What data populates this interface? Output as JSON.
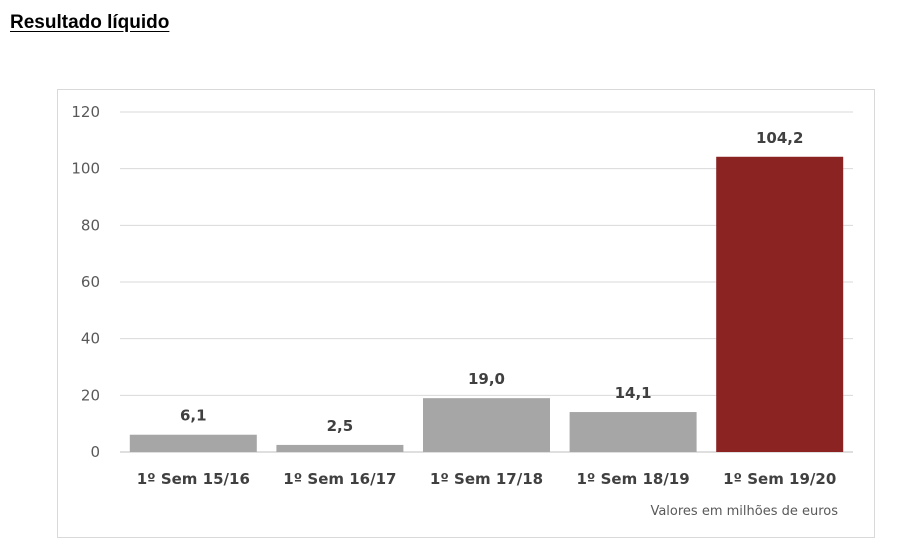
{
  "heading": "Resultado líquido",
  "chart_data": {
    "type": "bar",
    "categories": [
      "1º Sem 15/16",
      "1º Sem 16/17",
      "1º Sem 17/18",
      "1º Sem 18/19",
      "1º Sem 19/20"
    ],
    "values": [
      6.1,
      2.5,
      19.0,
      14.1,
      104.2
    ],
    "data_labels": [
      "6,1",
      "2,5",
      "19,0",
      "14,1",
      "104,2"
    ],
    "bar_colors": [
      "#a6a6a6",
      "#a6a6a6",
      "#a6a6a6",
      "#a6a6a6",
      "#8b2323"
    ],
    "ylim": [
      0,
      120
    ],
    "yticks": [
      0,
      20,
      40,
      60,
      80,
      100,
      120
    ],
    "grid": true,
    "units_note": "Valores em milhões de euros"
  }
}
